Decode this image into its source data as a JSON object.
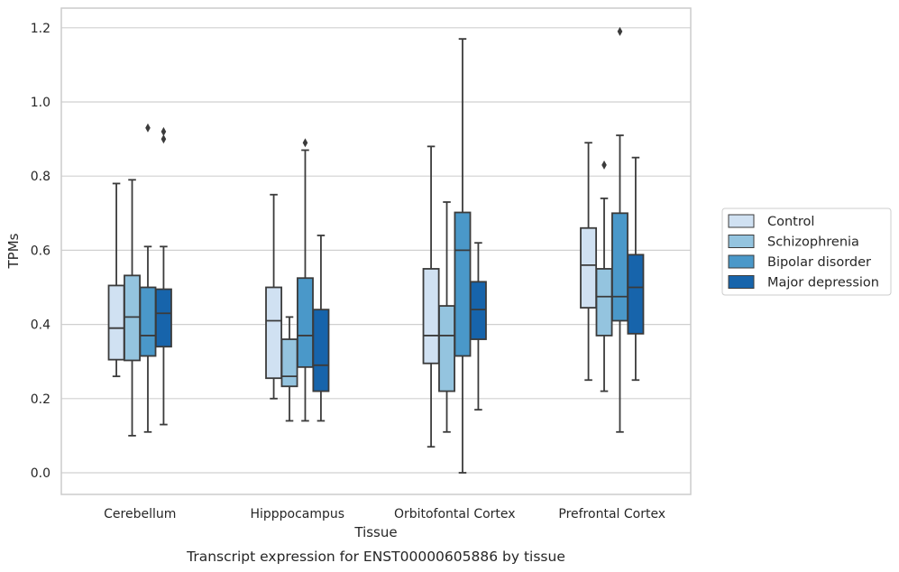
{
  "caption": "Transcript expression for ENST00000605886 by tissue",
  "chart_data": {
    "type": "box",
    "xlabel": "Tissue",
    "ylabel": "TPMs",
    "ylim": [
      -0.06,
      1.25
    ],
    "yticks": [
      0.0,
      0.2,
      0.4,
      0.6,
      0.8,
      1.0,
      1.2
    ],
    "ytick_labels": [
      "0.0",
      "0.2",
      "0.4",
      "0.6",
      "0.8",
      "1.0",
      "1.2"
    ],
    "grid": "horizontal",
    "legend_position": "right",
    "categories": [
      "Cerebellum",
      "Hipppocampus",
      "Orbitofontal Cortex",
      "Prefrontal Cortex"
    ],
    "series": [
      {
        "name": "Control",
        "color": "#d0e1f2",
        "boxes": [
          {
            "whislo": 0.26,
            "q1": 0.305,
            "med": 0.39,
            "q3": 0.505,
            "whishi": 0.78,
            "fliers": []
          },
          {
            "whislo": 0.2,
            "q1": 0.255,
            "med": 0.41,
            "q3": 0.5,
            "whishi": 0.75,
            "fliers": []
          },
          {
            "whislo": 0.07,
            "q1": 0.295,
            "med": 0.37,
            "q3": 0.55,
            "whishi": 0.88,
            "fliers": []
          },
          {
            "whislo": 0.25,
            "q1": 0.445,
            "med": 0.56,
            "q3": 0.66,
            "whishi": 0.89,
            "fliers": []
          }
        ]
      },
      {
        "name": "Schizophrenia",
        "color": "#94c4df",
        "boxes": [
          {
            "whislo": 0.1,
            "q1": 0.303,
            "med": 0.42,
            "q3": 0.532,
            "whishi": 0.79,
            "fliers": []
          },
          {
            "whislo": 0.14,
            "q1": 0.233,
            "med": 0.26,
            "q3": 0.36,
            "whishi": 0.42,
            "fliers": []
          },
          {
            "whislo": 0.11,
            "q1": 0.22,
            "med": 0.37,
            "q3": 0.45,
            "whishi": 0.73,
            "fliers": []
          },
          {
            "whislo": 0.22,
            "q1": 0.37,
            "med": 0.475,
            "q3": 0.55,
            "whishi": 0.74,
            "fliers": [
              0.83
            ]
          }
        ]
      },
      {
        "name": "Bipolar disorder",
        "color": "#4a98c9",
        "boxes": [
          {
            "whislo": 0.11,
            "q1": 0.315,
            "med": 0.37,
            "q3": 0.5,
            "whishi": 0.61,
            "fliers": [
              0.93
            ]
          },
          {
            "whislo": 0.14,
            "q1": 0.285,
            "med": 0.37,
            "q3": 0.525,
            "whishi": 0.87,
            "fliers": [
              0.89
            ]
          },
          {
            "whislo": 0.0,
            "q1": 0.315,
            "med": 0.6,
            "q3": 0.702,
            "whishi": 1.17,
            "fliers": []
          },
          {
            "whislo": 0.11,
            "q1": 0.41,
            "med": 0.475,
            "q3": 0.7,
            "whishi": 0.91,
            "fliers": [
              1.19
            ]
          }
        ]
      },
      {
        "name": "Major depression",
        "color": "#1764ab",
        "boxes": [
          {
            "whislo": 0.13,
            "q1": 0.34,
            "med": 0.43,
            "q3": 0.495,
            "whishi": 0.61,
            "fliers": [
              0.9,
              0.92
            ]
          },
          {
            "whislo": 0.14,
            "q1": 0.22,
            "med": 0.29,
            "q3": 0.44,
            "whishi": 0.64,
            "fliers": []
          },
          {
            "whislo": 0.17,
            "q1": 0.36,
            "med": 0.44,
            "q3": 0.515,
            "whishi": 0.62,
            "fliers": []
          },
          {
            "whislo": 0.25,
            "q1": 0.375,
            "med": 0.5,
            "q3": 0.588,
            "whishi": 0.85,
            "fliers": []
          }
        ]
      }
    ]
  }
}
